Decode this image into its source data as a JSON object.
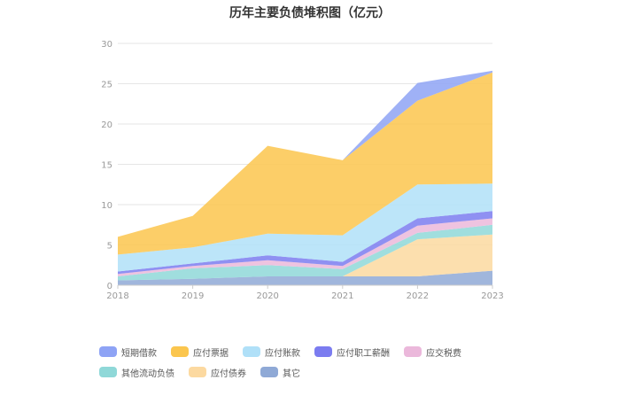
{
  "chart_data": {
    "type": "area",
    "stacked": true,
    "title": "历年主要负债堆积图（亿元）",
    "categories": [
      "2018",
      "2019",
      "2020",
      "2021",
      "2022",
      "2023"
    ],
    "ylim": [
      0,
      30
    ],
    "yticks": [
      0,
      5,
      10,
      15,
      20,
      25,
      30
    ],
    "grid": "horizontal",
    "legend_position": "bottom",
    "series": [
      {
        "name": "其它",
        "color": "#8fa9d6",
        "values": [
          0.6,
          0.8,
          1.1,
          1.1,
          1.1,
          1.8
        ]
      },
      {
        "name": "应付债券",
        "color": "#fcd9a0",
        "values": [
          0,
          0,
          0,
          0,
          4.6,
          4.5
        ]
      },
      {
        "name": "其他流动负债",
        "color": "#8fd8d8",
        "values": [
          0.5,
          1.3,
          1.4,
          0.9,
          0.8,
          1.2
        ]
      },
      {
        "name": "应交税费",
        "color": "#ebb8db",
        "values": [
          0.3,
          0.3,
          0.6,
          0.4,
          0.9,
          0.8
        ]
      },
      {
        "name": "应付职工薪酬",
        "color": "#7b7cf0",
        "values": [
          0.3,
          0.3,
          0.6,
          0.5,
          0.9,
          0.9
        ]
      },
      {
        "name": "应付账款",
        "color": "#b0e0f8",
        "values": [
          2.1,
          2.0,
          2.7,
          3.3,
          4.2,
          3.4
        ]
      },
      {
        "name": "应付票据",
        "color": "#fbc64e",
        "values": [
          2.2,
          3.9,
          10.9,
          9.3,
          10.4,
          13.8
        ]
      },
      {
        "name": "短期借款",
        "color": "#8ea3f5",
        "values": [
          0,
          0,
          0,
          0,
          2.2,
          0.2
        ]
      }
    ],
    "legend_order": [
      "短期借款",
      "应付票据",
      "应付账款",
      "应付职工薪酬",
      "应交税费",
      "其他流动负债",
      "应付债券",
      "其它"
    ]
  }
}
